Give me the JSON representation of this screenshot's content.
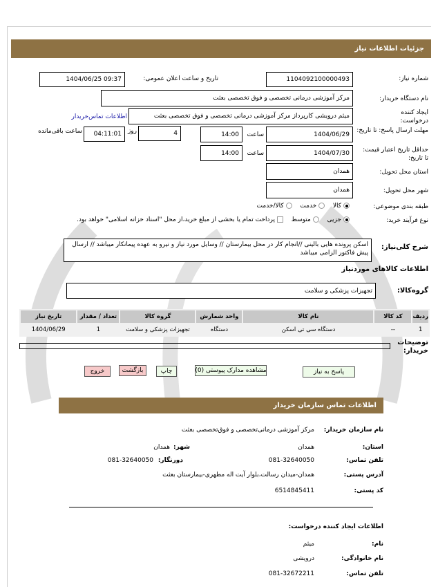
{
  "header": {
    "title": "جزئیات اطلاعات نیاز"
  },
  "form": {
    "need_number_label": "شماره نیاز:",
    "need_number": "1104092100000493",
    "announce_label": "تاریخ و ساعت اعلان عمومی:",
    "announce_value": "1404/06/25 09:37",
    "buyer_label": "نام دستگاه خریدار:",
    "buyer_value": "مرکز آموزشی درمانی تخصصی و فوق تخصصی بعثت",
    "creator_label": "ایجاد کننده درخواست:",
    "creator_value": "میثم درویشی کارپرداز مرکز آموزشی درمانی تخصصی و فوق تخصصی بعثت",
    "contact_link": "اطلاعات تماس‌خریدار",
    "deadline_label": "مهلت ارسال پاسخ: تا تاریخ:",
    "deadline_date": "1404/06/29",
    "time_label": "ساعت",
    "deadline_time": "14:00",
    "days_value": "4",
    "days_label": "روز",
    "remaining_value": "04:11:01",
    "remaining_label": "ساعت باقی‌مانده",
    "validity_label": "حداقل تاریخ اعتبار قیمت: تا تاریخ:",
    "validity_date": "1404/07/30",
    "validity_time": "14:00",
    "province_label": "استان محل تحویل:",
    "province_value": "همدان",
    "city_label": "شهر محل تحویل:",
    "city_value": "همدان",
    "category_label": "طبقه بندی موضوعی:",
    "category_options": [
      "کالا",
      "خدمت",
      "کالا/خدمت"
    ],
    "category_selected": "کالا",
    "purchase_label": "نوع فرآیند خرید:",
    "purchase_options": [
      "جزیی",
      "متوسط"
    ],
    "purchase_selected": "جزیی",
    "payment_note": "پرداخت تمام یا بخشی از مبلغ خرید،از محل \"اسناد خزانه اسلامی\" خواهد بود."
  },
  "description": {
    "label": "شرح کلی‌نیاز:",
    "text": "اسکن پرونده هایی بالینی //انجام کار در محل بیمارستان // وسایل مورد نیاز و نیرو به عهده پیمانکار میباشد // ارسال پیش فاکتور الزامی میباشد"
  },
  "goods": {
    "title": "اطلاعات کالاهای موردنیاز",
    "group_label": "گروه‌کالا:",
    "group_value": "تجهیزات پزشکی و سلامت",
    "columns": [
      "ردیف",
      "کد کالا",
      "نام کالا",
      "واحد شمارش",
      "گروه کالا",
      "تعداد / مقدار",
      "تاریخ نیاز"
    ],
    "rows": [
      [
        "1",
        "--",
        "دستگاه سی تی اسکن",
        "دستگاه",
        "تجهیزات پزشکی و سلامت",
        "1",
        "1404/06/29"
      ]
    ]
  },
  "notes": {
    "label": "توضیحات خریدار:",
    "value": ""
  },
  "buttons": {
    "reply": "پاسخ به نیاز",
    "attachments": "مشاهده مدارک پیوستی (0)",
    "print": "چاپ",
    "back": "بازگشت",
    "exit": "خروج"
  },
  "contact": {
    "title": "اطلاعات تماس سازمان خریدار",
    "org_label": "نام سازمان خریدار:",
    "org_value": "مرکز آموزشی درمانی‌تخصصی و فوق‌تخصصی بعثت",
    "province_label": "استان:",
    "province_value": "همدان",
    "city_label": "شهر:",
    "city_value": "همدان",
    "phone_label": "تلفن تماس:",
    "phone_value": "081-32640050",
    "fax_label": "دورنگار:",
    "fax_value": "081-32640050",
    "address_label": "آدرس پستی:",
    "address_value": "همدان-میدان رسالت،بلوار آیت اله مطهری-بیمارستان بعثت",
    "postal_label": "کد پستی:",
    "postal_value": "6514845411",
    "creator_title": "اطلاعات ایجاد کننده درخواست:",
    "name_label": "نام:",
    "name_value": "میثم",
    "family_label": "نام خانوادگی:",
    "family_value": "درویشی",
    "cphone_label": "تلفن تماس:",
    "cphone_value": "081-32672211"
  },
  "colors": {
    "header_bar": "#8e7244",
    "reply_button": "#eefbe9",
    "exit_button": "#f7c9c9",
    "link": "#1a1aa8"
  }
}
